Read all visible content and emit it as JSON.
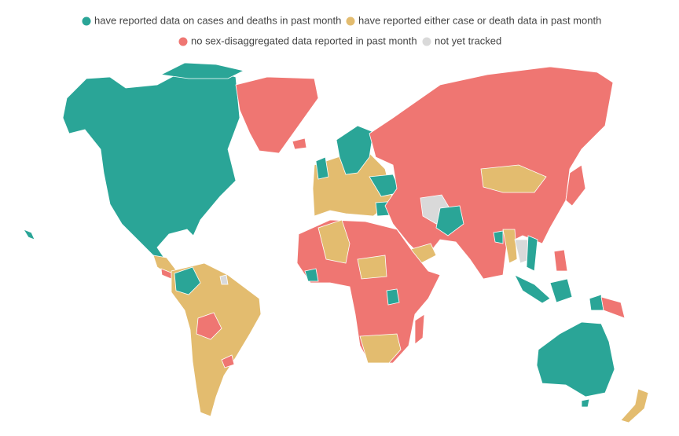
{
  "legend": {
    "items": [
      {
        "label": "have reported data on cases and deaths in past month",
        "color": "#2aa597"
      },
      {
        "label": "have reported either case or death data in past month",
        "color": "#e3bc6f"
      },
      {
        "label": "no sex-disaggregated data reported in past month",
        "color": "#ef7672"
      },
      {
        "label": "not yet tracked",
        "color": "#d9d9d9"
      }
    ]
  }
}
